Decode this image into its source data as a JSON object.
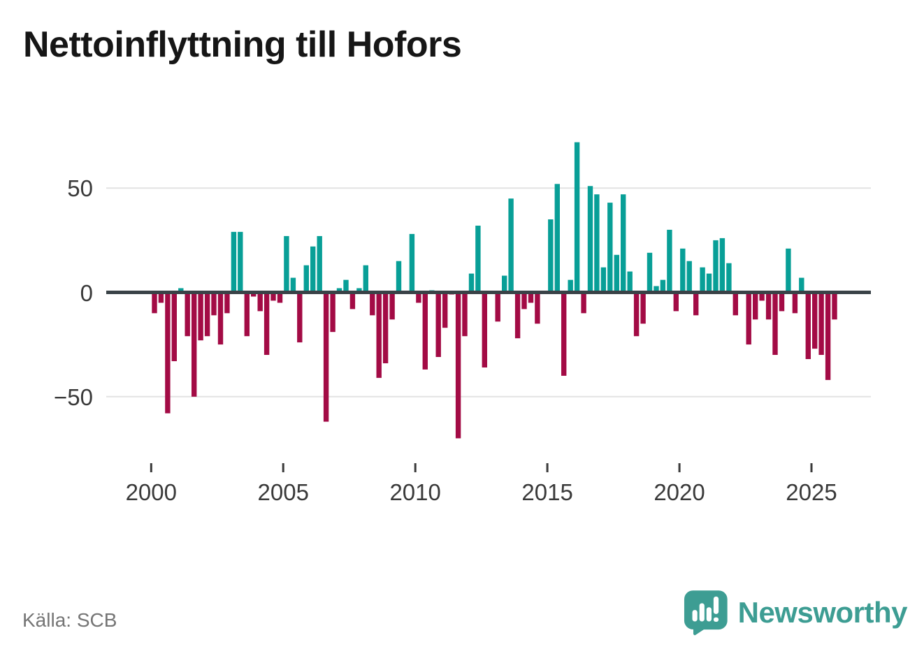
{
  "title": "Nettoinflyttning till Hofors",
  "source": "Källa: SCB",
  "branding": {
    "name": "Newsworthy",
    "icon": "newsworthy-bubble-barchart-icon"
  },
  "colors": {
    "positive_bar": "#089f97",
    "negative_bar": "#a30b45",
    "zero_line": "#3a4247",
    "gridline": "#e3e3e3",
    "axis_text": "#3a3a3a",
    "title_text": "#161616",
    "source_text": "#757575",
    "brand_teal": "#3d9d93"
  },
  "chart_data": {
    "type": "bar",
    "title": "Nettoinflyttning till Hofors",
    "periodicity": "quarterly",
    "start_period": "2000Q1",
    "end_period": "2025Q4",
    "x_tick_labels": [
      "2000",
      "2005",
      "2010",
      "2015",
      "2020",
      "2025"
    ],
    "y_tick_labels": [
      "50",
      "0",
      "−50"
    ],
    "y_ticks": [
      50,
      0,
      -50
    ],
    "ylim": [
      -78,
      80
    ],
    "grid": "horizontal",
    "legend": "none",
    "series": [
      {
        "name": "Nettoinflyttning",
        "values": [
          -10,
          -5,
          -58,
          -33,
          2,
          -21,
          -50,
          -23,
          -21,
          -11,
          -25,
          -10,
          29,
          29,
          -21,
          -2,
          -9,
          -30,
          -4,
          -5,
          27,
          7,
          -24,
          13,
          22,
          27,
          -62,
          -19,
          2,
          6,
          -8,
          2,
          13,
          -11,
          -41,
          -34,
          -13,
          15,
          0,
          28,
          -5,
          -37,
          1,
          -31,
          -17,
          -1,
          -70,
          -21,
          9,
          32,
          -36,
          0,
          -14,
          8,
          45,
          -22,
          -8,
          -5,
          -15,
          0,
          35,
          52,
          -40,
          6,
          72,
          -10,
          51,
          47,
          12,
          43,
          18,
          47,
          10,
          -21,
          -15,
          19,
          3,
          6,
          30,
          -9,
          21,
          15,
          -11,
          12,
          9,
          25,
          26,
          14,
          -11,
          0,
          -25,
          -13,
          -4,
          -13,
          -30,
          -9,
          21,
          -10,
          7,
          -32,
          -27,
          -30,
          -42,
          -13
        ]
      }
    ]
  }
}
